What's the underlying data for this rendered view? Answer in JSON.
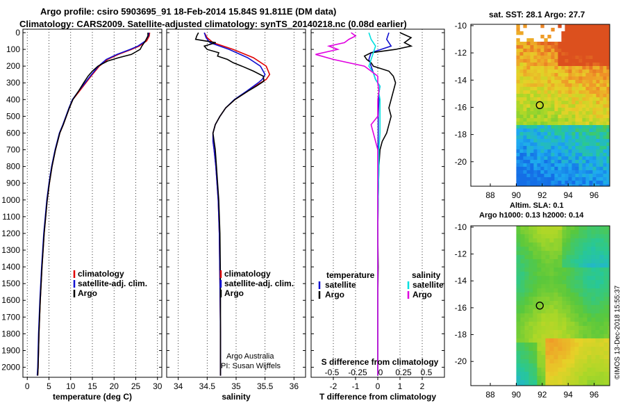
{
  "header": {
    "line1": "Argo profile: csiro 5903695_91 18-Feb-2014 15.84S 91.811E (DM data)",
    "line2": "Climatology: CARS2009. Satellite-adjusted climatology: synTS_20140218.nc (0.08d earlier)"
  },
  "colors": {
    "climatology": "#e00000",
    "satellite": "#1010d0",
    "argo": "#000000",
    "sat_salinity": "#00e0e0",
    "argo_salinity": "#e000e0"
  },
  "chart_data": [
    {
      "type": "line",
      "id": "temperature",
      "xlabel": "temperature (deg C)",
      "xlim": [
        -1,
        31
      ],
      "xticks": [
        0,
        5,
        10,
        15,
        20,
        25,
        30
      ],
      "ylim": [
        0,
        2060
      ],
      "yticks": [
        0,
        100,
        200,
        300,
        400,
        500,
        600,
        700,
        800,
        900,
        1000,
        1100,
        1200,
        1300,
        1400,
        1500,
        1600,
        1700,
        1800,
        1900,
        2000
      ],
      "legend": [
        "climatology",
        "satellite-adj. clim.",
        "Argo"
      ],
      "series": [
        {
          "name": "climatology",
          "depth": [
            0,
            20,
            50,
            80,
            100,
            130,
            160,
            200,
            250,
            300,
            350,
            400,
            450,
            500,
            550,
            600,
            700,
            800,
            900,
            1000,
            1200,
            1400,
            1600,
            1800,
            2000,
            2050
          ],
          "values": [
            28.2,
            28.1,
            27.5,
            25.8,
            24.0,
            21.0,
            18.5,
            16.6,
            15.0,
            13.5,
            12.0,
            10.5,
            9.7,
            9.0,
            8.3,
            7.5,
            6.5,
            5.7,
            5.1,
            4.6,
            3.9,
            3.4,
            3.0,
            2.7,
            2.5,
            2.4
          ]
        },
        {
          "name": "satellite-adj. clim.",
          "depth": [
            0,
            20,
            50,
            80,
            100,
            130,
            160,
            200,
            250,
            300,
            350,
            400,
            450,
            500,
            550,
            600,
            700,
            800,
            900,
            1000,
            1200,
            1400,
            1600,
            1800,
            2000,
            2050
          ],
          "values": [
            28.0,
            27.9,
            27.2,
            25.5,
            23.7,
            20.7,
            18.2,
            16.4,
            14.8,
            13.3,
            11.8,
            10.4,
            9.6,
            8.9,
            8.2,
            7.4,
            6.4,
            5.6,
            5.0,
            4.5,
            3.8,
            3.3,
            2.9,
            2.6,
            2.4,
            2.3
          ]
        },
        {
          "name": "Argo",
          "depth": [
            0,
            20,
            50,
            80,
            100,
            130,
            150,
            170,
            200,
            230,
            260,
            300,
            350,
            400,
            450,
            500,
            550,
            600,
            700,
            800,
            900,
            1000,
            1200,
            1400,
            1600,
            1800,
            2000,
            2050
          ],
          "values": [
            27.8,
            27.8,
            27.2,
            26.4,
            26.0,
            24.0,
            21.0,
            18.5,
            16.3,
            15.0,
            14.0,
            13.0,
            11.8,
            10.5,
            9.7,
            9.0,
            8.3,
            7.5,
            6.5,
            5.7,
            5.1,
            4.6,
            3.9,
            3.4,
            3.0,
            2.7,
            2.5,
            2.4
          ]
        }
      ]
    },
    {
      "type": "line",
      "id": "salinity",
      "xlabel": "salinity",
      "xlim": [
        33.8,
        36.2
      ],
      "xticks": [
        34,
        34.5,
        35,
        35.5,
        36
      ],
      "ylim": [
        0,
        2060
      ],
      "legend": [
        "climatology",
        "satellite-adj. clim.",
        "Argo"
      ],
      "series": [
        {
          "name": "climatology",
          "depth": [
            0,
            30,
            60,
            100,
            150,
            200,
            250,
            280,
            300,
            350,
            400,
            450,
            500,
            550,
            600,
            650,
            700,
            800,
            1000,
            1200,
            1500,
            1800,
            2000,
            2050
          ],
          "values": [
            34.45,
            34.5,
            34.6,
            34.95,
            35.3,
            35.52,
            35.58,
            35.52,
            35.42,
            35.2,
            34.98,
            34.82,
            34.72,
            34.64,
            34.6,
            34.6,
            34.62,
            34.65,
            34.69,
            34.71,
            34.72,
            34.73,
            34.73,
            34.73
          ]
        },
        {
          "name": "satellite-adj. clim.",
          "depth": [
            0,
            30,
            60,
            100,
            150,
            200,
            250,
            280,
            300,
            350,
            400,
            450,
            500,
            550,
            600,
            650,
            700,
            800,
            1000,
            1200,
            1500,
            1800,
            2000,
            2050
          ],
          "values": [
            34.45,
            34.48,
            34.55,
            34.88,
            35.2,
            35.42,
            35.5,
            35.45,
            35.38,
            35.18,
            34.97,
            34.82,
            34.72,
            34.64,
            34.6,
            34.6,
            34.62,
            34.65,
            34.69,
            34.71,
            34.72,
            34.73,
            34.73,
            34.73
          ]
        },
        {
          "name": "Argo",
          "depth": [
            0,
            20,
            40,
            60,
            80,
            100,
            120,
            140,
            160,
            180,
            200,
            230,
            260,
            290,
            320,
            350,
            400,
            450,
            500,
            550,
            600,
            650,
            700,
            800,
            1000,
            1200,
            1500,
            1800,
            2000,
            2050
          ],
          "values": [
            34.35,
            34.32,
            34.3,
            34.65,
            34.45,
            34.5,
            34.7,
            34.68,
            34.85,
            34.95,
            35.1,
            35.3,
            35.47,
            35.48,
            35.35,
            35.2,
            34.98,
            34.82,
            34.72,
            34.64,
            34.6,
            34.62,
            34.64,
            34.66,
            34.7,
            34.72,
            34.73,
            34.73,
            34.73,
            34.73
          ]
        }
      ]
    },
    {
      "type": "line",
      "id": "difference",
      "xlabel": "T difference from climatology",
      "xlabel_top": "S difference from climatology",
      "xlim": [
        -3,
        3
      ],
      "xticks": [
        -2,
        -1,
        0,
        1,
        2
      ],
      "xticks_top_labels": [
        "-0.5",
        "-0.25",
        "0",
        "0.25",
        "0.5"
      ],
      "ylim": [
        0,
        2060
      ],
      "legend_left_title": "temperature",
      "legend_right_title": "salinity",
      "legend_left": [
        "satellite",
        "Argo"
      ],
      "legend_right": [
        "satellite",
        "Argo"
      ],
      "series": [
        {
          "name": "T satellite",
          "depth": [
            0,
            40,
            80,
            120,
            160,
            200,
            240,
            280,
            320,
            360,
            400,
            500,
            600,
            700,
            800,
            1000,
            1200,
            1400,
            1600,
            1800,
            2000,
            2050
          ],
          "values": [
            0.5,
            0.4,
            0.6,
            -0.3,
            -0.4,
            -0.3,
            -0.2,
            -0.1,
            0.1,
            0.05,
            0.05,
            0.02,
            0.02,
            0.01,
            0.01,
            0.0,
            0.0,
            0.0,
            0.0,
            0.0,
            0.0,
            0.0
          ]
        },
        {
          "name": "T Argo",
          "depth": [
            0,
            30,
            60,
            80,
            100,
            120,
            140,
            160,
            180,
            200,
            230,
            260,
            300,
            350,
            400,
            450,
            500,
            550,
            600,
            650,
            700,
            800,
            1000,
            1200,
            1400,
            1600,
            1800,
            2000,
            2050
          ],
          "values": [
            1.0,
            1.5,
            1.2,
            1.5,
            0.8,
            -0.3,
            -0.6,
            -0.5,
            -0.3,
            -0.2,
            0.5,
            0.7,
            0.8,
            0.7,
            0.6,
            0.5,
            0.6,
            0.5,
            0.4,
            0.2,
            0.1,
            0.05,
            0.02,
            0.0,
            0.02,
            0.0,
            0.0,
            0.0,
            0.0
          ]
        },
        {
          "name": "S satellite",
          "depth": [
            0,
            40,
            80,
            120,
            160,
            200,
            240,
            280,
            320,
            360,
            400,
            500,
            600,
            700,
            800,
            1000,
            1200,
            1400,
            1600,
            1800,
            2000,
            2050
          ],
          "values": [
            -0.4,
            -0.3,
            -0.1,
            -0.2,
            -0.3,
            -0.4,
            -0.2,
            -0.1,
            0.1,
            0.05,
            0.1,
            0.1,
            0.1,
            0.05,
            0.05,
            0.02,
            0.0,
            0.0,
            0.0,
            0.0,
            0.0,
            0.0
          ]
        },
        {
          "name": "S Argo",
          "depth": [
            0,
            20,
            40,
            60,
            80,
            100,
            130,
            160,
            200,
            230,
            260,
            300,
            350,
            400,
            500,
            550,
            600,
            700,
            800,
            1000,
            1200,
            1400,
            1600,
            1800,
            2000,
            2050
          ],
          "values": [
            -1.2,
            -1.0,
            -1.3,
            -1.5,
            -2.2,
            -1.8,
            -2.8,
            -2.0,
            -0.6,
            -0.3,
            0.0,
            0.0,
            0.05,
            0.0,
            0.0,
            -0.3,
            -0.2,
            0.0,
            0.0,
            0.0,
            0.0,
            0.0,
            0.0,
            0.0,
            0.0,
            0.0
          ]
        }
      ]
    },
    {
      "type": "heatmap",
      "id": "sst-map",
      "title": "sat. SST: 28.1 Argo: 27.7",
      "xticks": [
        88,
        90,
        92,
        94,
        96
      ],
      "yticks": [
        -10,
        -12,
        -14,
        -16,
        -18,
        -20
      ],
      "xlim": [
        86.5,
        97.2
      ],
      "ylim": [
        -21.8,
        -9.9
      ],
      "argo_position": {
        "lon": 91.811,
        "lat": -15.84
      }
    },
    {
      "type": "heatmap",
      "id": "sla-map",
      "title": "Altim. SLA: 0.1",
      "subtitle": "Argo h1000: 0.13 h2000: 0.14",
      "xticks": [
        88,
        90,
        92,
        94,
        96
      ],
      "yticks": [
        -10,
        -12,
        -14,
        -16,
        -18,
        -20
      ],
      "xlim": [
        86.5,
        97.2
      ],
      "ylim": [
        -21.8,
        -9.9
      ],
      "argo_position": {
        "lon": 91.811,
        "lat": -15.84
      }
    }
  ],
  "credits": {
    "org": "Argo Australia",
    "pi": "PI: Susan Wijffels",
    "timestamp": "©IMOS 13-Dec-2018 15:55:37"
  }
}
